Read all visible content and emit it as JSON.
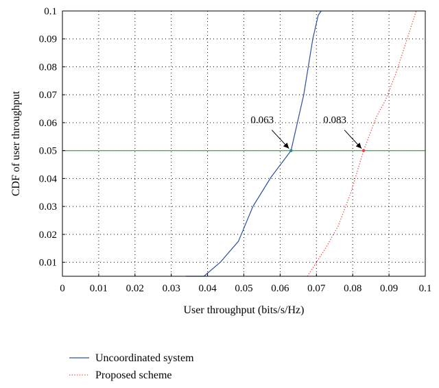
{
  "chart_data": {
    "type": "line",
    "xlabel": "User throughput (bits/s/Hz)",
    "ylabel": "CDF of user throughput",
    "xlim": [
      0,
      0.1
    ],
    "ylim": [
      0.005,
      0.1
    ],
    "x_ticks": [
      "0",
      "0.01",
      "0.02",
      "0.03",
      "0.04",
      "0.05",
      "0.06",
      "0.07",
      "0.08",
      "0.09",
      "0.1"
    ],
    "x_tick_values": [
      0,
      0.01,
      0.02,
      0.03,
      0.04,
      0.05,
      0.06,
      0.07,
      0.08,
      0.09,
      0.1
    ],
    "y_ticks": [
      "0.01",
      "0.02",
      "0.03",
      "0.04",
      "0.05",
      "0.06",
      "0.07",
      "0.08",
      "0.09",
      "0.1"
    ],
    "y_tick_values": [
      0.01,
      0.02,
      0.03,
      0.04,
      0.05,
      0.06,
      0.07,
      0.08,
      0.09,
      0.1
    ],
    "grid": true,
    "legend_position": "below",
    "series": [
      {
        "name": "Uncoordinated system",
        "color": "#2b4f9e",
        "style": "solid",
        "x": [
          0.034,
          0.039,
          0.0435,
          0.0485,
          0.0525,
          0.0575,
          0.063,
          0.0665,
          0.069,
          0.0705,
          0.0713
        ],
        "y": [
          0.005,
          0.005,
          0.01,
          0.0175,
          0.03,
          0.0405,
          0.05,
          0.07,
          0.09,
          0.0985,
          0.1
        ]
      },
      {
        "name": "Proposed scheme",
        "color": "#e8473f",
        "style": "dotted",
        "x": [
          0.0675,
          0.069,
          0.0725,
          0.076,
          0.0795,
          0.083,
          0.0865,
          0.089,
          0.092,
          0.0945,
          0.0965,
          0.0975
        ],
        "y": [
          0.005,
          0.008,
          0.015,
          0.023,
          0.035,
          0.05,
          0.062,
          0.068,
          0.078,
          0.088,
          0.096,
          0.1
        ]
      }
    ],
    "reference_line": {
      "y": 0.05,
      "color": "#4bb04b"
    },
    "annotations": [
      {
        "text": "0.063",
        "x": 0.063,
        "y": 0.05,
        "marker_color": "#2a8a8a"
      },
      {
        "text": "0.083",
        "x": 0.083,
        "y": 0.05,
        "marker_color": "#e8473f"
      }
    ]
  }
}
